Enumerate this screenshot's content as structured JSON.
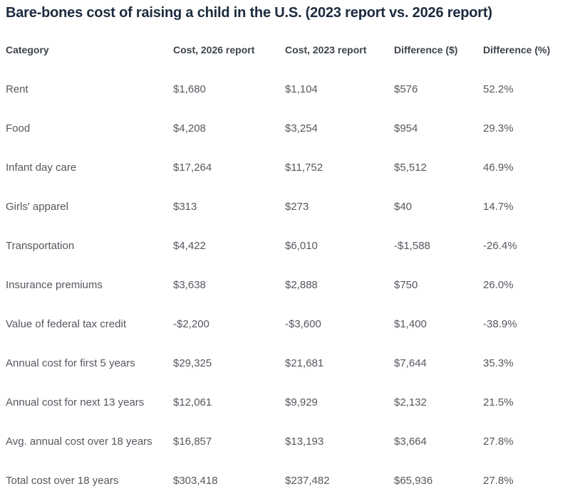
{
  "title": "Bare-bones cost of raising a child in the U.S. (2023 report vs. 2026 report)",
  "colors": {
    "title_text": "#1b2b3e",
    "header_text": "#3d444b",
    "body_text": "#54585f",
    "background": "#ffffff"
  },
  "table": {
    "columns": [
      "Category",
      "Cost, 2026 report",
      "Cost, 2023 report",
      "Difference ($)",
      "Difference (%)"
    ],
    "rows": [
      [
        "Rent",
        "$1,680",
        "$1,104",
        "$576",
        "52.2%"
      ],
      [
        "Food",
        "$4,208",
        "$3,254",
        "$954",
        "29.3%"
      ],
      [
        "Infant day care",
        "$17,264",
        "$11,752",
        "$5,512",
        "46.9%"
      ],
      [
        "Girls' apparel",
        "$313",
        "$273",
        "$40",
        "14.7%"
      ],
      [
        "Transportation",
        "$4,422",
        "$6,010",
        "-$1,588",
        "-26.4%"
      ],
      [
        "Insurance premiums",
        "$3,638",
        "$2,888",
        "$750",
        "26.0%"
      ],
      [
        "Value of federal tax credit",
        "-$2,200",
        "-$3,600",
        "$1,400",
        "-38.9%"
      ],
      [
        "Annual cost for first 5 years",
        "$29,325",
        "$21,681",
        "$7,644",
        "35.3%"
      ],
      [
        "Annual cost for next 13 years",
        "$12,061",
        "$9,929",
        "$2,132",
        "21.5%"
      ],
      [
        "Avg. annual cost over 18 years",
        "$16,857",
        "$13,193",
        "$3,664",
        "27.8%"
      ],
      [
        "Total cost over 18 years",
        "$303,418",
        "$237,482",
        "$65,936",
        "27.8%"
      ]
    ]
  },
  "chart_data": {
    "type": "table",
    "title": "Bare-bones cost of raising a child in the U.S. (2023 report vs. 2026 report)",
    "columns": [
      "Category",
      "Cost, 2026 report",
      "Cost, 2023 report",
      "Difference ($)",
      "Difference (%)"
    ],
    "categories": [
      "Rent",
      "Food",
      "Infant day care",
      "Girls' apparel",
      "Transportation",
      "Insurance premiums",
      "Value of federal tax credit",
      "Annual cost for first 5 years",
      "Annual cost for next 13 years",
      "Avg. annual cost over 18 years",
      "Total cost over 18 years"
    ],
    "series": [
      {
        "name": "Cost, 2026 report",
        "values": [
          1680,
          4208,
          17264,
          313,
          4422,
          3638,
          -2200,
          29325,
          12061,
          16857,
          303418
        ]
      },
      {
        "name": "Cost, 2023 report",
        "values": [
          1104,
          3254,
          11752,
          273,
          6010,
          2888,
          -3600,
          21681,
          9929,
          13193,
          237482
        ]
      },
      {
        "name": "Difference ($)",
        "values": [
          576,
          954,
          5512,
          40,
          -1588,
          750,
          1400,
          7644,
          2132,
          3664,
          65936
        ]
      },
      {
        "name": "Difference (%)",
        "values": [
          52.2,
          29.3,
          46.9,
          14.7,
          -26.4,
          26.0,
          -38.9,
          35.3,
          21.5,
          27.8,
          27.8
        ]
      }
    ],
    "layout_hints": {
      "grid": false,
      "row_separators": false,
      "alignment": "left",
      "legend_position": "none"
    }
  }
}
